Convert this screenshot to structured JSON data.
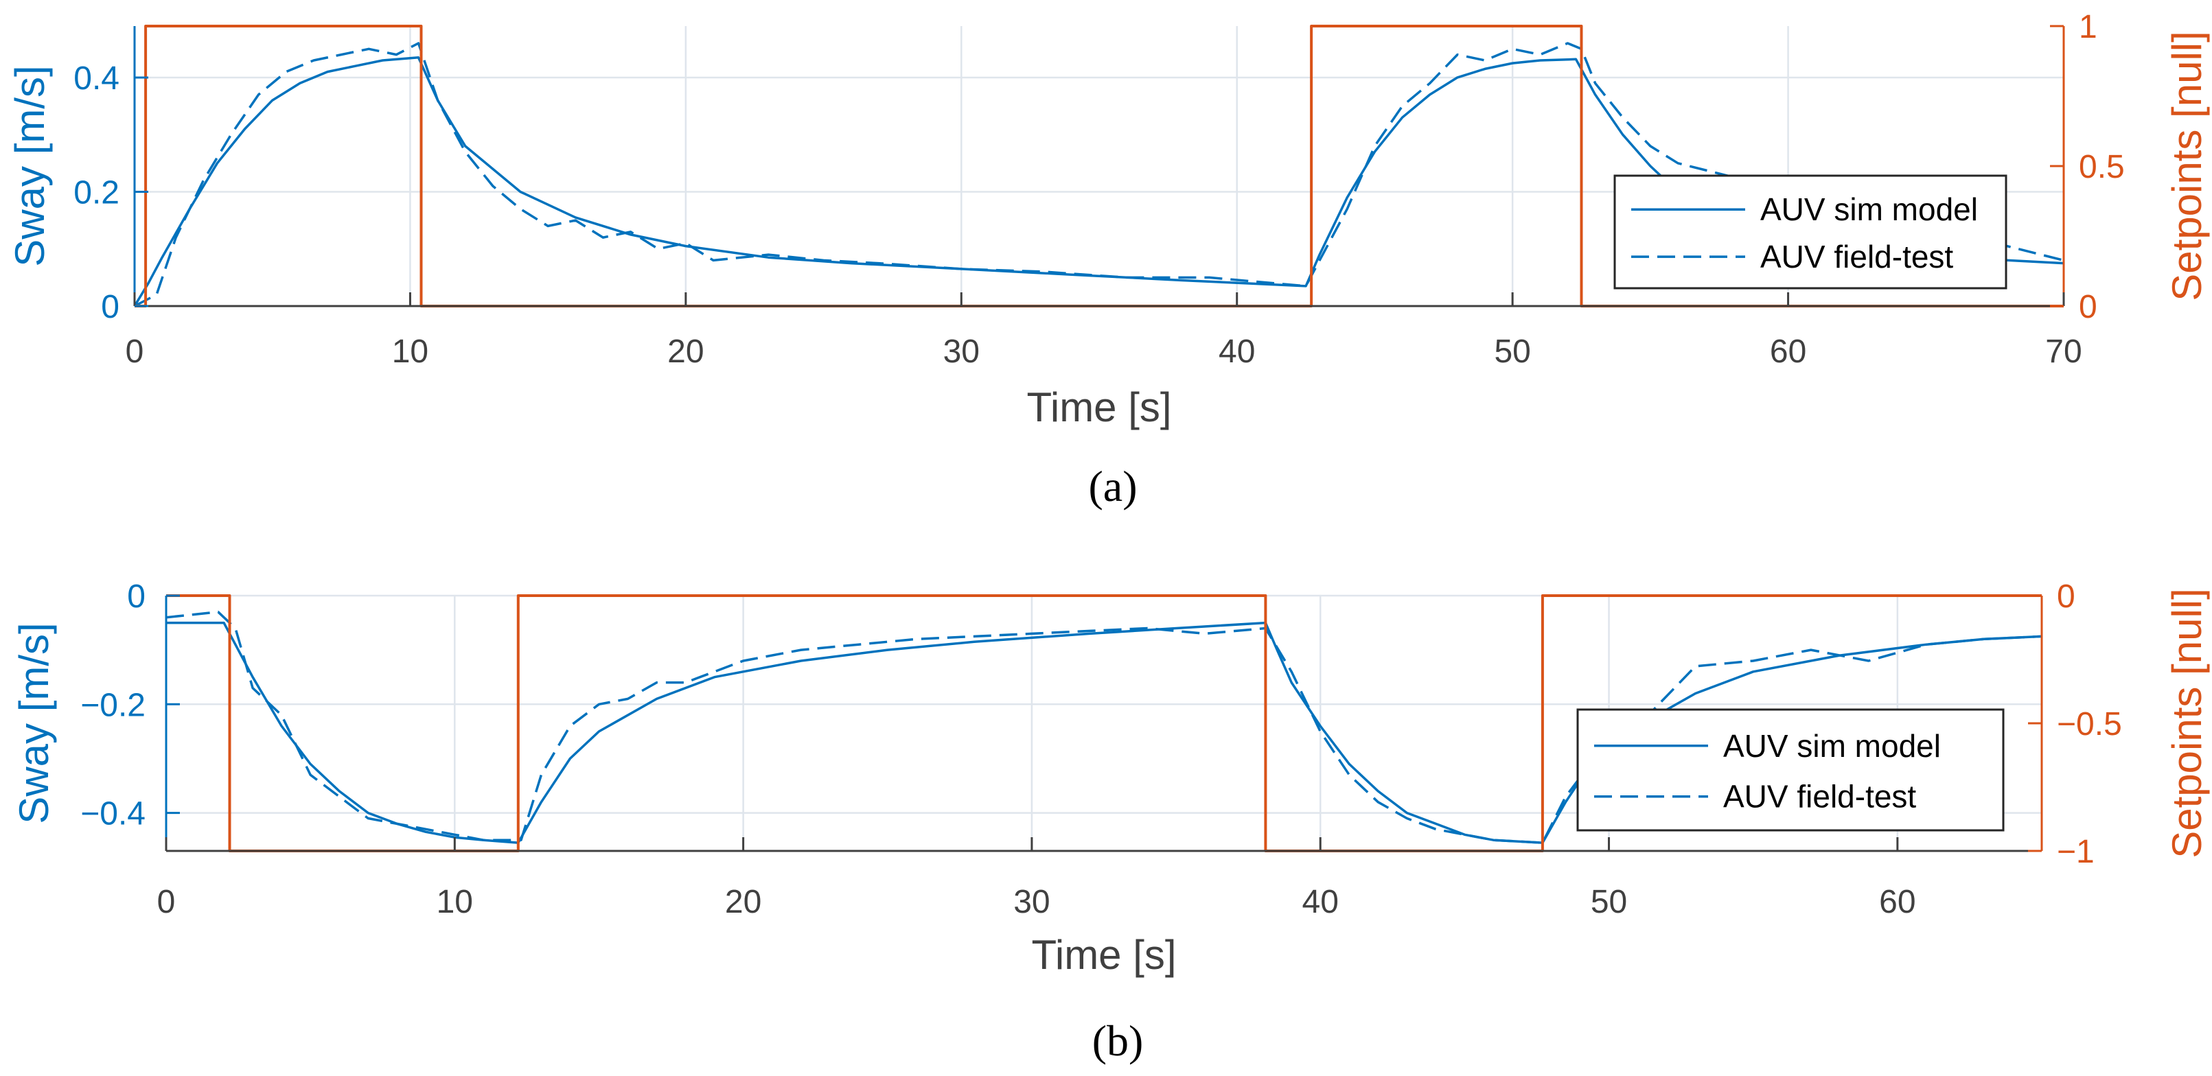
{
  "colors": {
    "sway": "#0072BD",
    "setpoint": "#D95319",
    "grid": "#dfe5ec",
    "axis": "#404040"
  },
  "chart_data": [
    {
      "type": "line",
      "caption": "(a)",
      "xlabel": "Time [s]",
      "ylabel": "Sway [m/s]",
      "y2label": "Setpoints [null]",
      "xlim": [
        0,
        70
      ],
      "ylim": [
        0,
        0.49
      ],
      "y2lim": [
        0,
        1
      ],
      "xticks": [
        0,
        10,
        20,
        30,
        40,
        50,
        60,
        70
      ],
      "xtick_labels": [
        "0",
        "10",
        "20",
        "30",
        "40",
        "50",
        "60",
        "70"
      ],
      "yticks": [
        0,
        0.2,
        0.4
      ],
      "ytick_labels": [
        "0",
        "0.2",
        "0.4"
      ],
      "y2ticks": [
        0,
        0.5,
        1
      ],
      "y2tick_labels": [
        "0",
        "0.5",
        "1"
      ],
      "grid": true,
      "legend_position": "right",
      "series": [
        {
          "name": "AUV sim model",
          "style": "solid",
          "axis": "left",
          "x": [
            0,
            0.5,
            1,
            2,
            3,
            4,
            5,
            6,
            7,
            8,
            9,
            10.3,
            11,
            12,
            14,
            16,
            18,
            20,
            23,
            26,
            30,
            34,
            38,
            42.5,
            43,
            44,
            45,
            46,
            47,
            48,
            49,
            50,
            51,
            52.3,
            53,
            54,
            55,
            56,
            57,
            58,
            60,
            62,
            65,
            68,
            70
          ],
          "y": [
            0,
            0.04,
            0.085,
            0.17,
            0.25,
            0.31,
            0.36,
            0.39,
            0.41,
            0.42,
            0.43,
            0.435,
            0.36,
            0.28,
            0.2,
            0.155,
            0.125,
            0.105,
            0.085,
            0.075,
            0.065,
            0.055,
            0.045,
            0.035,
            0.09,
            0.19,
            0.27,
            0.33,
            0.37,
            0.4,
            0.415,
            0.425,
            0.43,
            0.432,
            0.37,
            0.3,
            0.245,
            0.2,
            0.165,
            0.14,
            0.115,
            0.1,
            0.09,
            0.08,
            0.075
          ]
        },
        {
          "name": "AUV field-test",
          "style": "dashed",
          "axis": "left",
          "x": [
            0,
            0.8,
            1.5,
            2.5,
            3.5,
            4.5,
            5.5,
            6.5,
            7.5,
            8.5,
            9.5,
            10.3,
            11,
            12,
            13,
            14,
            15,
            16,
            17,
            18,
            19,
            20,
            21,
            23,
            25,
            27,
            30,
            33,
            36,
            39,
            42.5,
            43,
            44,
            45,
            46,
            47,
            48,
            49,
            50,
            51,
            52,
            52.5,
            53,
            54,
            55,
            56,
            70
          ],
          "y": [
            0,
            0.02,
            0.12,
            0.22,
            0.3,
            0.37,
            0.41,
            0.43,
            0.44,
            0.45,
            0.44,
            0.46,
            0.36,
            0.27,
            0.21,
            0.17,
            0.14,
            0.15,
            0.12,
            0.13,
            0.1,
            0.11,
            0.08,
            0.09,
            0.08,
            0.075,
            0.065,
            0.06,
            0.05,
            0.05,
            0.035,
            0.08,
            0.17,
            0.28,
            0.35,
            0.39,
            0.44,
            0.43,
            0.45,
            0.44,
            0.46,
            0.45,
            0.39,
            0.33,
            0.28,
            0.25,
            0.08
          ]
        },
        {
          "name": "Setpoint",
          "style": "solid",
          "axis": "right",
          "x": [
            0,
            0.4,
            0.4,
            10.4,
            10.4,
            42.7,
            42.7,
            52.5,
            52.5,
            70
          ],
          "y": [
            0,
            0,
            1,
            1,
            0,
            0,
            1,
            1,
            0,
            0
          ]
        }
      ]
    },
    {
      "type": "line",
      "caption": "(b)",
      "xlabel": "Time [s]",
      "ylabel": "Sway [m/s]",
      "y2label": "Setpoints [null]",
      "xlim": [
        0,
        65
      ],
      "ylim": [
        -0.47,
        0
      ],
      "y2lim": [
        -1,
        0
      ],
      "xticks": [
        0,
        10,
        20,
        30,
        40,
        50,
        60
      ],
      "xtick_labels": [
        "0",
        "10",
        "20",
        "30",
        "40",
        "50",
        "60"
      ],
      "yticks": [
        0,
        -0.2,
        -0.4
      ],
      "ytick_labels": [
        "0",
        "−0.2",
        "−0.4"
      ],
      "y2ticks": [
        0,
        -0.5,
        -1
      ],
      "y2tick_labels": [
        "0",
        "−0.5",
        "−1"
      ],
      "grid": true,
      "legend_position": "right",
      "series": [
        {
          "name": "AUV sim model",
          "style": "solid",
          "axis": "left",
          "x": [
            0,
            2,
            2.2,
            3,
            4,
            5,
            6,
            7,
            8,
            9,
            10,
            11,
            12.2,
            13,
            14,
            15,
            17,
            19,
            22,
            25,
            28,
            32,
            35,
            38.1,
            38.5,
            39,
            40,
            41,
            42,
            43,
            44,
            45,
            46,
            47.7,
            48.5,
            49.5,
            51,
            53,
            55,
            58,
            61,
            63,
            65
          ],
          "y": [
            -0.05,
            -0.05,
            -0.07,
            -0.15,
            -0.24,
            -0.31,
            -0.36,
            -0.4,
            -0.42,
            -0.435,
            -0.445,
            -0.45,
            -0.455,
            -0.38,
            -0.3,
            -0.25,
            -0.19,
            -0.15,
            -0.12,
            -0.1,
            -0.085,
            -0.07,
            -0.06,
            -0.05,
            -0.1,
            -0.16,
            -0.24,
            -0.31,
            -0.36,
            -0.4,
            -0.42,
            -0.44,
            -0.45,
            -0.455,
            -0.38,
            -0.3,
            -0.24,
            -0.18,
            -0.14,
            -0.11,
            -0.09,
            -0.08,
            -0.075
          ]
        },
        {
          "name": "AUV field-test",
          "style": "dashed",
          "axis": "left",
          "x": [
            0,
            1.8,
            2.4,
            3,
            4,
            5,
            6,
            7,
            8,
            9,
            10,
            11,
            12.3,
            13,
            14,
            15,
            16,
            17,
            18,
            19,
            20,
            22,
            24,
            26,
            28,
            30,
            32,
            34,
            36,
            38.1,
            39,
            40,
            41,
            42,
            43,
            44,
            45,
            46,
            47.7,
            48.5,
            49.5,
            51,
            53,
            55,
            57,
            59,
            61,
            63,
            65
          ],
          "y": [
            -0.04,
            -0.03,
            -0.06,
            -0.17,
            -0.22,
            -0.33,
            -0.37,
            -0.41,
            -0.42,
            -0.43,
            -0.44,
            -0.45,
            -0.45,
            -0.33,
            -0.24,
            -0.2,
            -0.19,
            -0.16,
            -0.16,
            -0.14,
            -0.12,
            -0.1,
            -0.09,
            -0.08,
            -0.075,
            -0.07,
            -0.065,
            -0.06,
            -0.07,
            -0.06,
            -0.14,
            -0.25,
            -0.33,
            -0.38,
            -0.41,
            -0.43,
            -0.44,
            -0.45,
            -0.455,
            -0.37,
            -0.3,
            -0.24,
            -0.13,
            -0.12,
            -0.1,
            -0.12,
            -0.09,
            -0.08,
            -0.075
          ]
        },
        {
          "name": "Setpoint",
          "style": "solid",
          "axis": "right",
          "x": [
            0,
            2.2,
            2.2,
            12.2,
            12.2,
            38.1,
            38.1,
            47.7,
            47.7,
            65
          ],
          "y": [
            0,
            0,
            -1,
            -1,
            0,
            0,
            -1,
            -1,
            0,
            0
          ]
        }
      ]
    }
  ]
}
